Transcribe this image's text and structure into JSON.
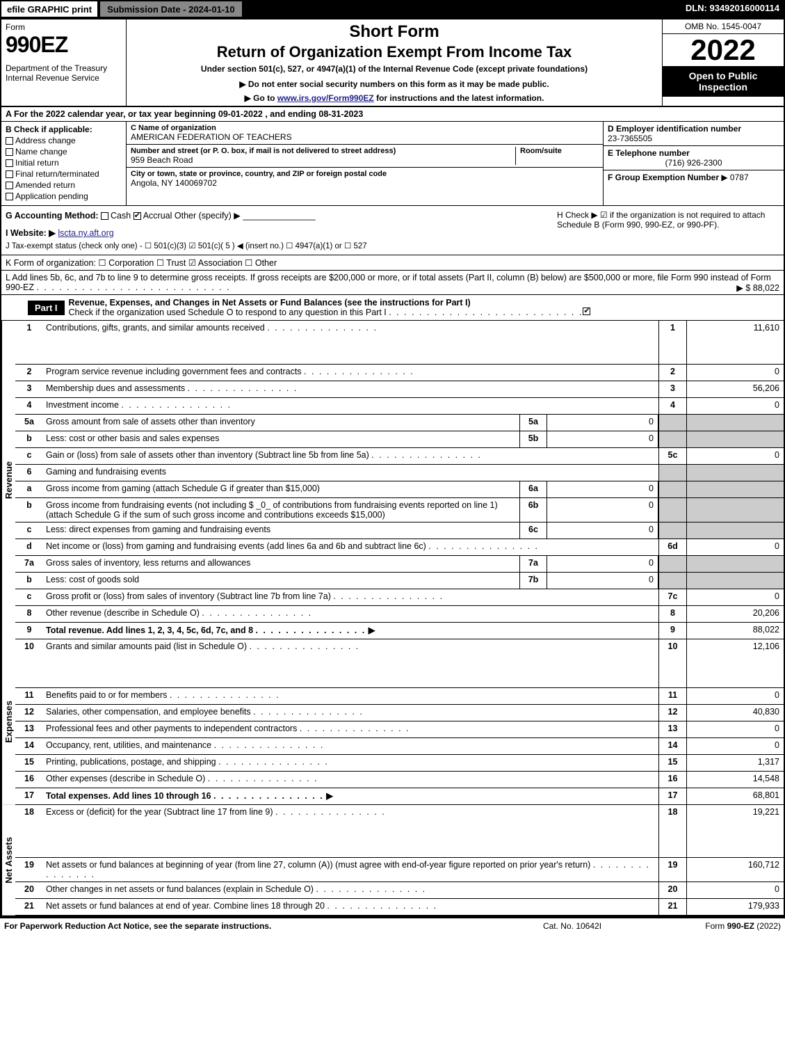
{
  "topbar": {
    "efile": "efile GRAPHIC print",
    "subdate": "Submission Date - 2024-01-10",
    "dln": "DLN: 93492016000114"
  },
  "header": {
    "form_word": "Form",
    "form_num": "990EZ",
    "dept": "Department of the Treasury\nInternal Revenue Service",
    "title1": "Short Form",
    "title2": "Return of Organization Exempt From Income Tax",
    "subtitle": "Under section 501(c), 527, or 4947(a)(1) of the Internal Revenue Code (except private foundations)",
    "note": "▶ Do not enter social security numbers on this form as it may be made public.",
    "golink_pre": "▶ Go to ",
    "golink_url": "www.irs.gov/Form990EZ",
    "golink_post": " for instructions and the latest information.",
    "omb": "OMB No. 1545-0047",
    "year": "2022",
    "openbox": "Open to Public Inspection"
  },
  "sectA": "A  For the 2022 calendar year, or tax year beginning 09-01-2022 , and ending 08-31-2023",
  "sectB": {
    "label": "B  Check if applicable:",
    "items": [
      "Address change",
      "Name change",
      "Initial return",
      "Final return/terminated",
      "Amended return",
      "Application pending"
    ]
  },
  "sectC": {
    "name_lbl": "C Name of organization",
    "name_val": "AMERICAN FEDERATION OF TEACHERS",
    "street_lbl": "Number and street (or P. O. box, if mail is not delivered to street address)",
    "street_val": "959 Beach Road",
    "room_lbl": "Room/suite",
    "city_lbl": "City or town, state or province, country, and ZIP or foreign postal code",
    "city_val": "Angola, NY  140069702"
  },
  "sectD": {
    "lbl": "D Employer identification number",
    "val": "23-7365505"
  },
  "sectE": {
    "lbl": "E Telephone number",
    "val": "(716) 926-2300"
  },
  "sectF": {
    "lbl": "F Group Exemption Number",
    "val": "▶ 0787"
  },
  "sectG": {
    "label": "G Accounting Method:",
    "cash": "Cash",
    "accrual": "Accrual",
    "other": "Other (specify) ▶",
    "line": "_______________"
  },
  "sectH": {
    "text": "H  Check ▶ ☑ if the organization is not required to attach Schedule B (Form 990, 990-EZ, or 990-PF)."
  },
  "sectI": {
    "lbl": "I Website: ▶",
    "val": "lscta.ny.aft.org"
  },
  "sectJ": "J Tax-exempt status (check only one) - ☐ 501(c)(3) ☑ 501(c)( 5 ) ◀ (insert no.) ☐ 4947(a)(1) or ☐ 527",
  "sectK": "K Form of organization:  ☐ Corporation  ☐ Trust  ☑ Association  ☐ Other",
  "sectL": {
    "text": "L Add lines 5b, 6c, and 7b to line 9 to determine gross receipts. If gross receipts are $200,000 or more, or if total assets (Part II, column (B) below) are $500,000 or more, file Form 990 instead of Form 990-EZ",
    "val": "▶ $ 88,022"
  },
  "part1": {
    "label": "Part I",
    "title": "Revenue, Expenses, and Changes in Net Assets or Fund Balances (see the instructions for Part I)",
    "subtitle": "Check if the organization used Schedule O to respond to any question in this Part I"
  },
  "sections": {
    "revenue": "Revenue",
    "expenses": "Expenses",
    "netassets": "Net Assets"
  },
  "rows": [
    {
      "n": "1",
      "d": "Contributions, gifts, grants, and similar amounts received",
      "rn": "1",
      "rv": "11,610"
    },
    {
      "n": "2",
      "d": "Program service revenue including government fees and contracts",
      "rn": "2",
      "rv": "0"
    },
    {
      "n": "3",
      "d": "Membership dues and assessments",
      "rn": "3",
      "rv": "56,206"
    },
    {
      "n": "4",
      "d": "Investment income",
      "rn": "4",
      "rv": "0"
    },
    {
      "n": "5a",
      "d": "Gross amount from sale of assets other than inventory",
      "sn": "5a",
      "sv": "0",
      "shade": true
    },
    {
      "n": "b",
      "d": "Less: cost or other basis and sales expenses",
      "sn": "5b",
      "sv": "0",
      "shade": true
    },
    {
      "n": "c",
      "d": "Gain or (loss) from sale of assets other than inventory (Subtract line 5b from line 5a)",
      "rn": "5c",
      "rv": "0"
    },
    {
      "n": "6",
      "d": "Gaming and fundraising events",
      "shade": true
    },
    {
      "n": "a",
      "d": "Gross income from gaming (attach Schedule G if greater than $15,000)",
      "sn": "6a",
      "sv": "0",
      "shade": true
    },
    {
      "n": "b",
      "d": "Gross income from fundraising events (not including $ _0_ of contributions from fundraising events reported on line 1) (attach Schedule G if the sum of such gross income and contributions exceeds $15,000)",
      "sn": "6b",
      "sv": "0",
      "shade": true
    },
    {
      "n": "c",
      "d": "Less: direct expenses from gaming and fundraising events",
      "sn": "6c",
      "sv": "0",
      "shade": true
    },
    {
      "n": "d",
      "d": "Net income or (loss) from gaming and fundraising events (add lines 6a and 6b and subtract line 6c)",
      "rn": "6d",
      "rv": "0"
    },
    {
      "n": "7a",
      "d": "Gross sales of inventory, less returns and allowances",
      "sn": "7a",
      "sv": "0",
      "shade": true
    },
    {
      "n": "b",
      "d": "Less: cost of goods sold",
      "sn": "7b",
      "sv": "0",
      "shade": true
    },
    {
      "n": "c",
      "d": "Gross profit or (loss) from sales of inventory (Subtract line 7b from line 7a)",
      "rn": "7c",
      "rv": "0"
    },
    {
      "n": "8",
      "d": "Other revenue (describe in Schedule O)",
      "rn": "8",
      "rv": "20,206"
    },
    {
      "n": "9",
      "d": "Total revenue. Add lines 1, 2, 3, 4, 5c, 6d, 7c, and 8",
      "rn": "9",
      "rv": "88,022",
      "bold": true
    }
  ],
  "exp_rows": [
    {
      "n": "10",
      "d": "Grants and similar amounts paid (list in Schedule O)",
      "rn": "10",
      "rv": "12,106"
    },
    {
      "n": "11",
      "d": "Benefits paid to or for members",
      "rn": "11",
      "rv": "0"
    },
    {
      "n": "12",
      "d": "Salaries, other compensation, and employee benefits",
      "rn": "12",
      "rv": "40,830"
    },
    {
      "n": "13",
      "d": "Professional fees and other payments to independent contractors",
      "rn": "13",
      "rv": "0"
    },
    {
      "n": "14",
      "d": "Occupancy, rent, utilities, and maintenance",
      "rn": "14",
      "rv": "0"
    },
    {
      "n": "15",
      "d": "Printing, publications, postage, and shipping",
      "rn": "15",
      "rv": "1,317"
    },
    {
      "n": "16",
      "d": "Other expenses (describe in Schedule O)",
      "rn": "16",
      "rv": "14,548"
    },
    {
      "n": "17",
      "d": "Total expenses. Add lines 10 through 16",
      "rn": "17",
      "rv": "68,801",
      "bold": true
    }
  ],
  "na_rows": [
    {
      "n": "18",
      "d": "Excess or (deficit) for the year (Subtract line 17 from line 9)",
      "rn": "18",
      "rv": "19,221"
    },
    {
      "n": "19",
      "d": "Net assets or fund balances at beginning of year (from line 27, column (A)) (must agree with end-of-year figure reported on prior year's return)",
      "rn": "19",
      "rv": "160,712"
    },
    {
      "n": "20",
      "d": "Other changes in net assets or fund balances (explain in Schedule O)",
      "rn": "20",
      "rv": "0"
    },
    {
      "n": "21",
      "d": "Net assets or fund balances at end of year. Combine lines 18 through 20",
      "rn": "21",
      "rv": "179,933"
    }
  ],
  "footer": {
    "l": "For Paperwork Reduction Act Notice, see the separate instructions.",
    "c": "Cat. No. 10642I",
    "r": "Form 990-EZ (2022)"
  }
}
